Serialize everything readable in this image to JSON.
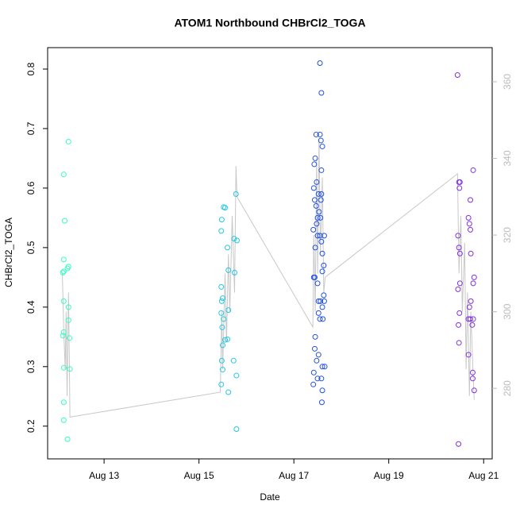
{
  "chart_data": {
    "type": "scatter",
    "title": "ATOM1 Northbound CHBrCl2_TOGA",
    "x_label": "Date",
    "y_label": "CHBrCl2_TOGA",
    "xlim": [
      11.81,
      21.18
    ],
    "xticks": [
      {
        "value": 13,
        "label": "Aug 13"
      },
      {
        "value": 15,
        "label": "Aug 15"
      },
      {
        "value": 17,
        "label": "Aug 17"
      },
      {
        "value": 19,
        "label": "Aug 19"
      },
      {
        "value": 21,
        "label": "Aug 21"
      }
    ],
    "ylim": [
      0.145,
      0.836
    ],
    "yticks": [
      0.2,
      0.3,
      0.4,
      0.5,
      0.6,
      0.7,
      0.8
    ],
    "y2lim": [
      261.6,
      368.9
    ],
    "y2ticks": [
      280,
      300,
      320,
      340,
      360
    ],
    "series": [
      {
        "color": "#33ffc0",
        "x": [
          12.25,
          12.15,
          12.17,
          12.15,
          12.15,
          12.13,
          12.25,
          12.23,
          12.15,
          12.25,
          12.25,
          12.15,
          12.13,
          12.27,
          12.15,
          12.28,
          12.15,
          12.15,
          12.23
        ],
        "values": [
          0.678,
          0.623,
          0.545,
          0.48,
          0.46,
          0.458,
          0.468,
          0.465,
          0.41,
          0.4,
          0.378,
          0.358,
          0.352,
          0.348,
          0.298,
          0.296,
          0.24,
          0.21,
          0.178
        ]
      },
      {
        "color": "#22c8e8",
        "x": [
          15.78,
          15.52,
          15.55,
          15.48,
          15.47,
          15.74,
          15.8,
          15.6,
          15.62,
          15.75,
          15.47,
          15.5,
          15.48,
          15.62,
          15.47,
          15.52,
          15.49,
          15.6,
          15.55,
          15.5,
          15.48,
          15.73,
          15.5,
          15.79,
          15.47,
          15.62,
          15.79
        ],
        "values": [
          0.59,
          0.568,
          0.567,
          0.547,
          0.528,
          0.515,
          0.512,
          0.5,
          0.462,
          0.458,
          0.434,
          0.415,
          0.41,
          0.395,
          0.39,
          0.38,
          0.366,
          0.346,
          0.345,
          0.336,
          0.31,
          0.31,
          0.295,
          0.285,
          0.27,
          0.257,
          0.195
        ]
      },
      {
        "color": "#2050e0",
        "x": [
          17.55,
          17.58,
          17.47,
          17.55,
          17.57,
          17.6,
          17.45,
          17.43,
          17.58,
          17.48,
          17.42,
          17.52,
          17.58,
          17.44,
          17.57,
          17.47,
          17.53,
          17.5,
          17.56,
          17.48,
          17.41,
          17.5,
          17.55,
          17.64,
          17.58,
          17.45,
          17.6,
          17.63,
          17.6,
          17.42,
          17.44,
          17.5,
          17.63,
          17.52,
          17.56,
          17.64,
          17.6,
          17.52,
          17.55,
          17.61,
          17.45,
          17.44,
          17.52,
          17.48,
          17.6,
          17.65,
          17.42,
          17.5,
          17.58,
          17.41,
          17.6,
          17.59
        ],
        "values": [
          0.81,
          0.76,
          0.69,
          0.69,
          0.68,
          0.67,
          0.65,
          0.64,
          0.63,
          0.61,
          0.6,
          0.59,
          0.59,
          0.58,
          0.58,
          0.57,
          0.56,
          0.55,
          0.55,
          0.54,
          0.53,
          0.52,
          0.52,
          0.52,
          0.51,
          0.5,
          0.49,
          0.47,
          0.46,
          0.45,
          0.45,
          0.44,
          0.42,
          0.41,
          0.41,
          0.41,
          0.4,
          0.39,
          0.38,
          0.38,
          0.35,
          0.33,
          0.32,
          0.31,
          0.3,
          0.3,
          0.29,
          0.28,
          0.28,
          0.27,
          0.26,
          0.24
        ]
      },
      {
        "color": "#8030e0",
        "x": [
          20.45,
          20.78,
          20.48,
          20.5,
          20.49,
          20.72,
          20.68,
          20.7,
          20.72,
          20.46,
          20.48,
          20.73,
          20.5,
          20.8,
          20.78,
          20.5,
          20.46,
          20.73,
          20.7,
          20.49,
          20.68,
          20.72,
          20.78,
          20.76,
          20.47,
          20.48,
          20.68,
          20.77,
          20.77,
          20.8,
          20.47
        ],
        "values": [
          0.79,
          0.63,
          0.61,
          0.61,
          0.6,
          0.58,
          0.55,
          0.54,
          0.53,
          0.52,
          0.5,
          0.49,
          0.49,
          0.45,
          0.44,
          0.44,
          0.43,
          0.41,
          0.4,
          0.39,
          0.38,
          0.38,
          0.38,
          0.37,
          0.37,
          0.34,
          0.32,
          0.29,
          0.28,
          0.26,
          0.17
        ]
      },
      {
        "color": "#c8c8c8",
        "axis": "y2",
        "x": [
          12.12,
          12.15,
          12.18,
          12.2,
          12.22,
          12.25,
          12.27,
          12.28,
          15.45,
          15.48,
          15.5,
          15.55,
          15.58,
          15.62,
          15.65,
          15.7,
          15.75,
          15.78,
          15.8,
          17.4,
          17.42,
          17.45,
          17.48,
          17.5,
          17.53,
          17.56,
          17.6,
          17.63,
          17.66,
          20.45,
          20.48,
          20.52,
          20.55,
          20.6,
          20.63,
          20.66,
          20.7,
          20.73,
          20.78,
          20.8
        ],
        "values": [
          310,
          295,
          285,
          300,
          278,
          305,
          285,
          272.5,
          279,
          300,
          285,
          310,
          292,
          315,
          300,
          325,
          305,
          338,
          330,
          296,
          320,
          300,
          340,
          310,
          345,
          315,
          335,
          305,
          309,
          336,
          310,
          325,
          300,
          318,
          285,
          305,
          278,
          300,
          283,
          277
        ]
      }
    ]
  }
}
